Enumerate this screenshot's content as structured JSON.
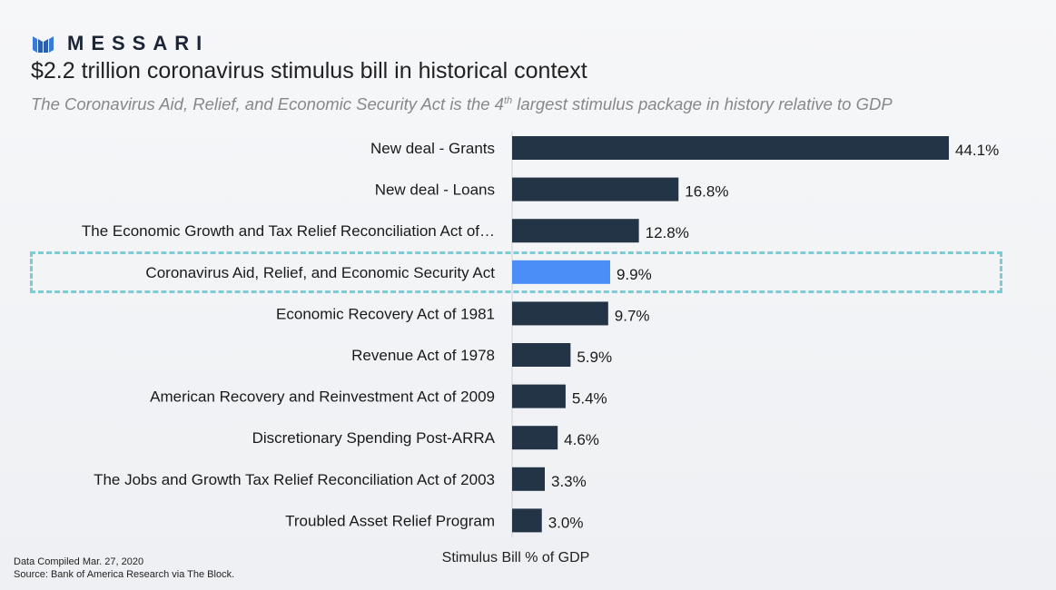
{
  "brand": {
    "name": "MESSARI",
    "logo_icon": "messari-m-icon",
    "color": "#1b2535"
  },
  "title": "$2.2 trillion coronavirus stimulus bill in historical context",
  "subtitle": {
    "before": "The Coronavirus Aid, Relief, and Economic Security Act is the 4",
    "sup": "th",
    "after": " largest stimulus package in history relative to GDP"
  },
  "footer": {
    "compiled": "Data Compiled Mar. 27, 2020",
    "source": "Source: Bank of America Research via The Block."
  },
  "colors": {
    "bar": "#243447",
    "highlight_bar": "#4b8ef7",
    "highlight_border": "#7ecbd6"
  },
  "chart_data": {
    "type": "bar",
    "orientation": "horizontal",
    "title": "",
    "xlabel": "Stimulus Bill % of GDP",
    "ylabel": "",
    "categories": [
      "New deal - Grants",
      "New deal - Loans",
      "The Economic Growth and Tax Relief Reconciliation Act of…",
      "Coronavirus Aid, Relief, and Economic Security Act",
      "Economic Recovery Act of 1981",
      "Revenue Act of 1978",
      "American Recovery and Reinvestment Act of 2009",
      "Discretionary Spending Post-ARRA",
      "The Jobs and Growth Tax Relief Reconciliation Act of 2003",
      "Troubled Asset Relief Program"
    ],
    "values": [
      44.1,
      16.8,
      12.8,
      9.9,
      9.7,
      5.9,
      5.4,
      4.6,
      3.3,
      3.0
    ],
    "value_labels": [
      "44.1%",
      "16.8%",
      "12.8%",
      "9.9%",
      "9.7%",
      "5.9%",
      "5.4%",
      "4.6%",
      "3.3%",
      "3.0%"
    ],
    "highlighted_index": 3,
    "xlim": [
      0,
      44.1
    ],
    "grid": false,
    "legend": "none"
  }
}
